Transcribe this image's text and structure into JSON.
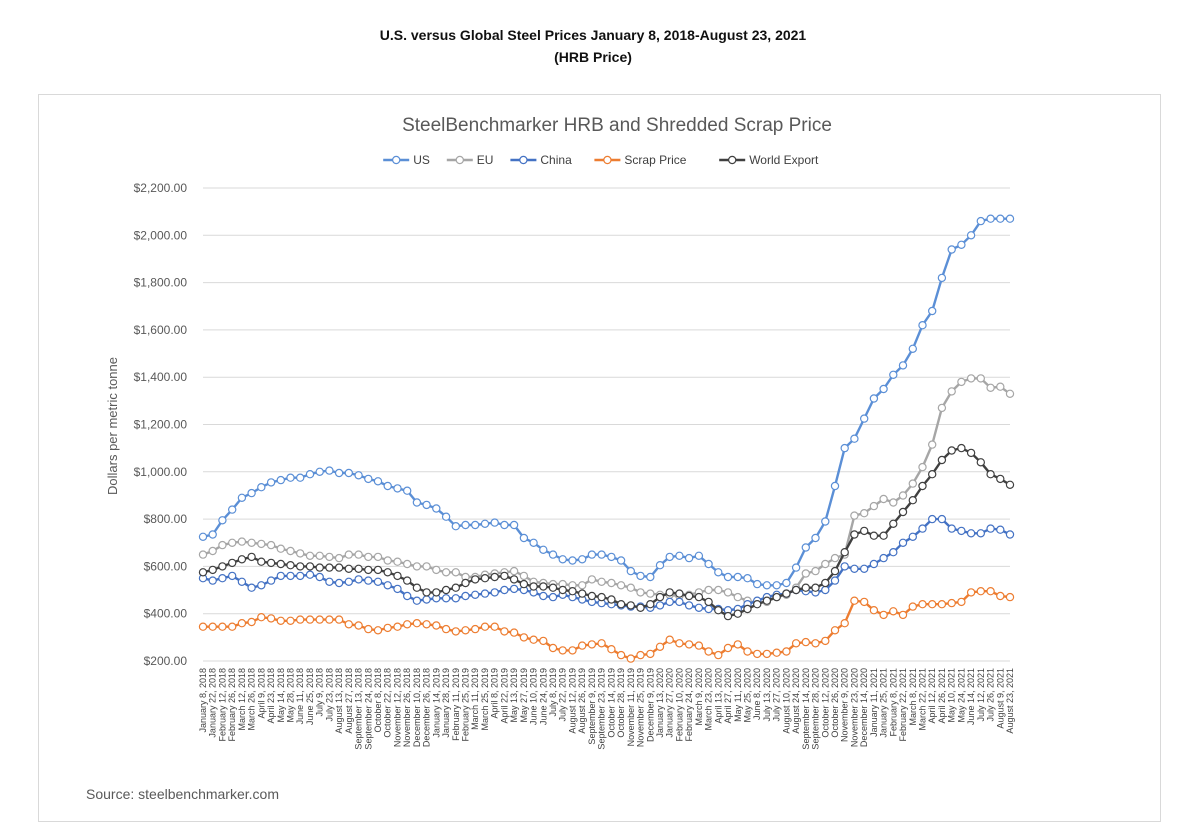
{
  "page": {
    "title_line1": "U.S. versus Global Steel Prices January 8, 2018-August 23, 2021",
    "title_line2": "(HRB Price)",
    "source": "Source: steelbenchmarker.com"
  },
  "chart_data": {
    "type": "line",
    "title": "SteelBenchmarker HRB and Shredded Scrap Price",
    "xlabel": "",
    "ylabel": "Dollars per metric tonne",
    "ylim": [
      200,
      2200
    ],
    "y_ticks": [
      200,
      400,
      600,
      800,
      1000,
      1200,
      1400,
      1600,
      1800,
      2000,
      2200
    ],
    "y_tick_labels": [
      "$200.00",
      "$400.00",
      "$600.00",
      "$800.00",
      "$1,000.00",
      "$1,200.00",
      "$1,400.00",
      "$1,600.00",
      "$1,800.00",
      "$2,000.00",
      "$2,200.00"
    ],
    "grid": "horizontal",
    "legend": "top",
    "x_tick_labels": [
      "January 8, 2018",
      "January 22, 2018",
      "February 12, 2018",
      "February 26, 2018",
      "March 12, 2018",
      "March 26, 2018",
      "April 9, 2018",
      "April 23, 2018",
      "May 14, 2018",
      "May 28, 2018",
      "June 11, 2018",
      "June 25, 2018",
      "July 9, 2018",
      "July 23, 2018",
      "August 13, 2018",
      "August 27, 2018",
      "September 13, 2018",
      "September 24, 2018",
      "October 8, 2018",
      "October 22, 2018",
      "November 12, 2018",
      "November 26, 2018",
      "December 10, 2018",
      "December 26, 2018",
      "January 14, 2019",
      "January 28, 2019",
      "February 11, 2019",
      "February 25, 2019",
      "March 11, 2019",
      "March 25, 2019",
      "April 8, 2019",
      "April 22, 2019",
      "May 13, 2019",
      "May 27, 2019",
      "June 10, 2019",
      "June 24, 2019",
      "July 8, 2019",
      "July 22, 2019",
      "August 12, 2019",
      "August 26, 2019",
      "September 9, 2019",
      "September 23, 2019",
      "October 14, 2019",
      "October 28, 2019",
      "November 11, 2019",
      "November 25, 2019",
      "December 9, 2019",
      "January 13, 2020",
      "January 27, 2020",
      "February 10, 2020",
      "February 24, 2020",
      "March 9, 2020",
      "March 23, 2020",
      "April 13, 2020",
      "April 27, 2020",
      "May 11, 2020",
      "May 25, 2020",
      "June 8, 2020",
      "July 13, 2020",
      "July 27, 2020",
      "August 10, 2020",
      "August 24, 2020",
      "September 14, 2020",
      "September 28, 2020",
      "October 12, 2020",
      "October 26, 2020",
      "November 9, 2020",
      "November 23, 2020",
      "December 14, 2020",
      "January 11, 2021",
      "January 25, 2021",
      "February 8, 2021",
      "February 22, 2021",
      "March 8, 2021",
      "March 22, 2021",
      "April 12, 2021",
      "April 26, 2021",
      "May 10, 2021",
      "May 24, 2021",
      "June 14, 2021",
      "July 12, 2021",
      "July 26, 2021",
      "August 9, 2021",
      "August 23, 2021"
    ],
    "series": [
      {
        "name": "US",
        "color": "#5b8fd6",
        "values": [
          725,
          735,
          795,
          840,
          890,
          910,
          935,
          955,
          965,
          975,
          975,
          990,
          1000,
          1005,
          995,
          995,
          985,
          970,
          960,
          940,
          930,
          920,
          870,
          860,
          845,
          810,
          770,
          775,
          775,
          780,
          785,
          775,
          775,
          720,
          700,
          670,
          650,
          630,
          625,
          630,
          650,
          650,
          640,
          625,
          580,
          560,
          555,
          605,
          640,
          645,
          635,
          645,
          610,
          575,
          555,
          555,
          550,
          525,
          520,
          520,
          530,
          595,
          680,
          720,
          790,
          940,
          1100,
          1140,
          1225,
          1310,
          1350,
          1410,
          1450,
          1520,
          1620,
          1680,
          1820,
          1940,
          1960,
          2000,
          2060,
          2070,
          2070,
          2070
        ]
      },
      {
        "name": "EU",
        "color": "#a6a6a6",
        "values": [
          650,
          665,
          690,
          700,
          705,
          700,
          695,
          690,
          675,
          665,
          655,
          645,
          645,
          640,
          635,
          650,
          650,
          640,
          640,
          625,
          620,
          610,
          600,
          600,
          585,
          575,
          575,
          555,
          555,
          565,
          570,
          575,
          580,
          560,
          535,
          530,
          525,
          525,
          520,
          520,
          545,
          535,
          530,
          520,
          510,
          490,
          485,
          480,
          480,
          475,
          480,
          490,
          500,
          500,
          490,
          470,
          455,
          445,
          450,
          470,
          480,
          510,
          570,
          580,
          610,
          635,
          650,
          815,
          825,
          855,
          885,
          870,
          900,
          950,
          1020,
          1115,
          1270,
          1340,
          1380,
          1395,
          1395,
          1355,
          1360,
          1330
        ]
      },
      {
        "name": "China",
        "color": "#4472c4",
        "values": [
          550,
          540,
          550,
          560,
          535,
          510,
          520,
          540,
          560,
          560,
          560,
          565,
          555,
          535,
          530,
          535,
          545,
          540,
          535,
          520,
          505,
          475,
          455,
          460,
          465,
          465,
          465,
          475,
          480,
          485,
          490,
          500,
          505,
          500,
          490,
          475,
          470,
          480,
          470,
          460,
          450,
          445,
          440,
          435,
          430,
          430,
          425,
          435,
          450,
          450,
          435,
          425,
          420,
          420,
          415,
          420,
          440,
          455,
          470,
          480,
          485,
          500,
          495,
          490,
          500,
          540,
          600,
          590,
          590,
          610,
          635,
          660,
          700,
          725,
          760,
          800,
          800,
          760,
          750,
          740,
          740,
          760,
          755,
          735
        ]
      },
      {
        "name": "Scrap Price",
        "color": "#ed7d31",
        "values": [
          345,
          345,
          345,
          345,
          360,
          365,
          385,
          380,
          370,
          370,
          375,
          375,
          375,
          375,
          375,
          355,
          350,
          335,
          330,
          340,
          345,
          355,
          360,
          355,
          350,
          335,
          325,
          330,
          335,
          345,
          345,
          325,
          320,
          300,
          290,
          285,
          255,
          245,
          245,
          265,
          270,
          275,
          250,
          225,
          210,
          225,
          230,
          260,
          290,
          275,
          270,
          265,
          240,
          225,
          255,
          270,
          240,
          230,
          230,
          235,
          240,
          275,
          280,
          275,
          285,
          330,
          360,
          455,
          450,
          415,
          395,
          410,
          395,
          430,
          440,
          440,
          440,
          445,
          450,
          490,
          495,
          495,
          475,
          470
        ]
      },
      {
        "name": "World Export",
        "color": "#404040",
        "values": [
          575,
          585,
          600,
          615,
          630,
          640,
          620,
          615,
          610,
          605,
          600,
          600,
          595,
          595,
          595,
          590,
          590,
          585,
          585,
          575,
          560,
          540,
          510,
          490,
          490,
          500,
          510,
          530,
          545,
          550,
          555,
          560,
          545,
          525,
          515,
          515,
          510,
          500,
          495,
          485,
          475,
          470,
          460,
          440,
          435,
          425,
          440,
          470,
          490,
          485,
          475,
          470,
          450,
          415,
          390,
          400,
          420,
          440,
          455,
          470,
          485,
          500,
          510,
          510,
          530,
          580,
          660,
          735,
          750,
          730,
          730,
          780,
          830,
          880,
          940,
          990,
          1050,
          1090,
          1100,
          1080,
          1040,
          990,
          970,
          945
        ]
      }
    ]
  }
}
